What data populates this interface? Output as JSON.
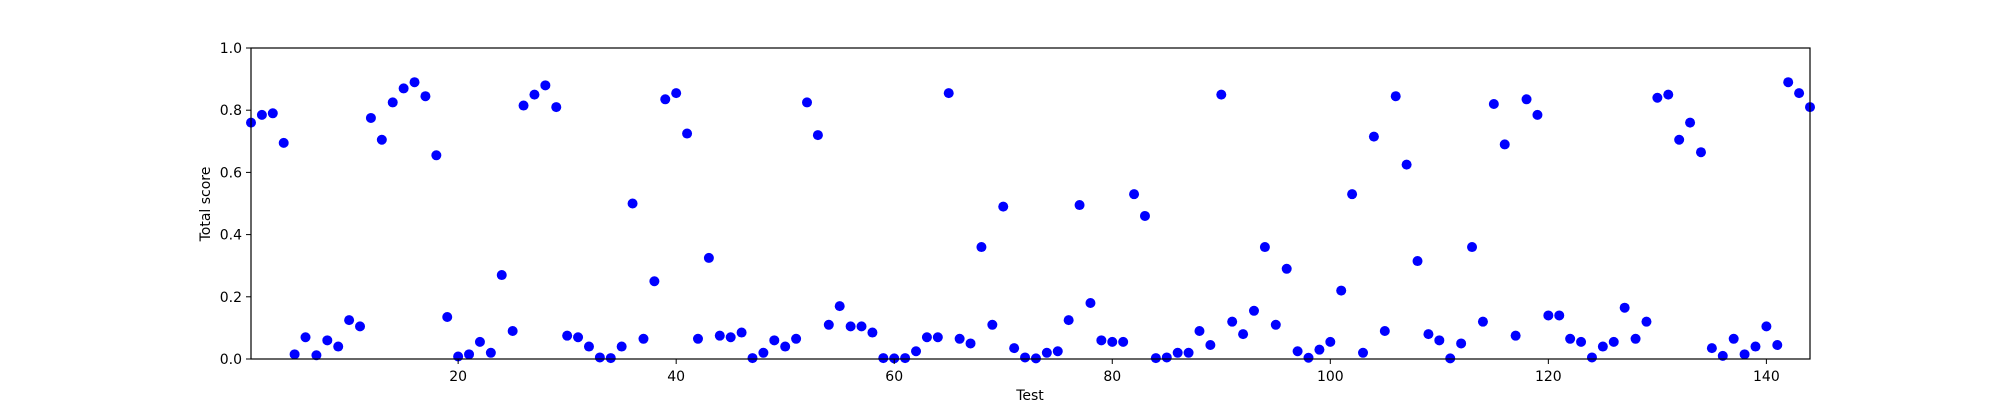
{
  "chart_data": {
    "type": "scatter",
    "title": "",
    "xlabel": "Test",
    "ylabel": "Total score",
    "xlim": [
      1,
      144
    ],
    "ylim": [
      0.0,
      1.0
    ],
    "x_ticks": [
      20,
      40,
      60,
      80,
      100,
      120,
      140
    ],
    "y_ticks": [
      0.0,
      0.2,
      0.4,
      0.6,
      0.8,
      1.0
    ],
    "x_tick_labels": [
      "20",
      "40",
      "60",
      "80",
      "100",
      "120",
      "140"
    ],
    "y_tick_labels": [
      "0.0",
      "0.2",
      "0.4",
      "0.6",
      "0.8",
      "1.0"
    ],
    "grid": false,
    "legend": "none",
    "marker_color": "#0000ff",
    "series": [
      {
        "x": [
          1,
          2,
          3,
          4,
          5,
          6,
          7,
          8,
          9,
          10,
          11,
          12,
          13,
          14,
          15,
          16,
          17,
          18,
          19,
          20,
          21,
          22,
          23,
          24,
          25,
          26,
          27,
          28,
          29,
          30,
          31,
          32,
          33,
          34,
          35,
          36,
          37,
          38,
          39,
          40,
          41,
          42,
          43,
          44,
          45,
          46,
          47,
          48,
          49,
          50,
          51,
          52,
          53,
          54,
          55,
          56,
          57,
          58,
          59,
          60,
          61,
          62,
          63,
          64,
          65,
          66,
          67,
          68,
          69,
          70,
          71,
          72,
          73,
          74,
          75,
          76,
          77,
          78,
          79,
          80,
          81,
          82,
          83,
          84,
          85,
          86,
          87,
          88,
          89,
          90,
          91,
          92,
          93,
          94,
          95,
          96,
          97,
          98,
          99,
          100,
          101,
          102,
          103,
          104,
          105,
          106,
          107,
          108,
          109,
          110,
          111,
          112,
          113,
          114,
          115,
          116,
          117,
          118,
          119,
          120,
          121,
          122,
          123,
          124,
          125,
          126,
          127,
          128,
          129,
          130,
          131,
          132,
          133,
          134,
          135,
          136,
          137,
          138,
          139,
          140,
          141,
          142,
          143,
          144
        ],
        "y": [
          0.76,
          0.785,
          0.79,
          0.695,
          0.015,
          0.07,
          0.012,
          0.06,
          0.04,
          0.125,
          0.105,
          0.775,
          0.705,
          0.825,
          0.87,
          0.89,
          0.845,
          0.655,
          0.135,
          0.008,
          0.015,
          0.055,
          0.02,
          0.27,
          0.09,
          0.815,
          0.85,
          0.88,
          0.81,
          0.075,
          0.07,
          0.04,
          0.005,
          0.003,
          0.04,
          0.5,
          0.065,
          0.25,
          0.835,
          0.855,
          0.725,
          0.065,
          0.325,
          0.075,
          0.07,
          0.085,
          0.003,
          0.02,
          0.06,
          0.04,
          0.065,
          0.825,
          0.72,
          0.11,
          0.17,
          0.105,
          0.105,
          0.085,
          0.003,
          0.002,
          0.003,
          0.025,
          0.07,
          0.07,
          0.855,
          0.065,
          0.05,
          0.36,
          0.11,
          0.49,
          0.035,
          0.005,
          0.002,
          0.02,
          0.025,
          0.125,
          0.495,
          0.18,
          0.06,
          0.055,
          0.055,
          0.53,
          0.46,
          0.003,
          0.005,
          0.02,
          0.02,
          0.09,
          0.045,
          0.85,
          0.12,
          0.08,
          0.155,
          0.36,
          0.11,
          0.29,
          0.025,
          0.004,
          0.03,
          0.055,
          0.22,
          0.53,
          0.02,
          0.715,
          0.09,
          0.845,
          0.625,
          0.315,
          0.08,
          0.06,
          0.002,
          0.05,
          0.36,
          0.12,
          0.82,
          0.69,
          0.075,
          0.835,
          0.785,
          0.14,
          0.14,
          0.065,
          0.055,
          0.005,
          0.04,
          0.055,
          0.165,
          0.065,
          0.12,
          0.84,
          0.85,
          0.705,
          0.76,
          0.665,
          0.035,
          0.01,
          0.065,
          0.015,
          0.04,
          0.105,
          0.045,
          0.89,
          0.855,
          0.81
        ]
      }
    ]
  }
}
